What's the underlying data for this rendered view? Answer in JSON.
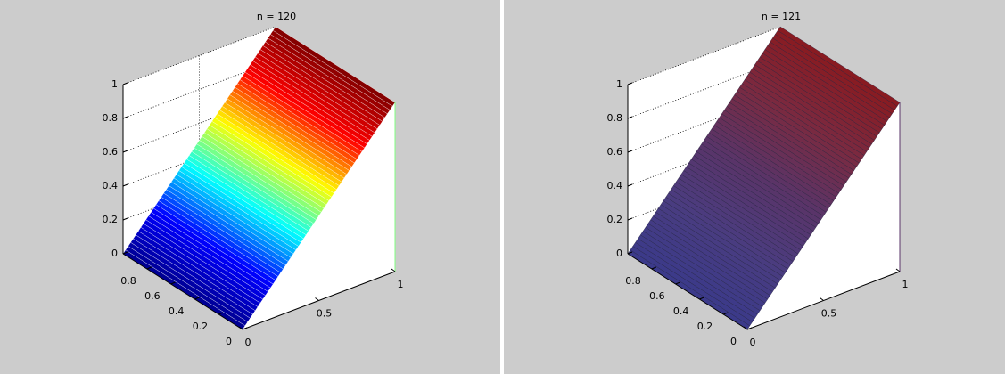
{
  "chart_data": [
    {
      "type": "surface",
      "title": "n = 120",
      "xlim": [
        0,
        1
      ],
      "ylim": [
        0,
        1
      ],
      "zlim": [
        0,
        1
      ],
      "xticks": [
        0,
        0.5,
        1
      ],
      "yticks": [
        0,
        0.2,
        0.4,
        0.6,
        0.8
      ],
      "zticks": [
        0,
        0.2,
        0.4,
        0.6,
        0.8,
        1
      ],
      "grid": true,
      "colors": [
        "#00008f",
        "#0000ff",
        "#00ffff",
        "#ffff00",
        "#ff0000",
        "#800000"
      ],
      "edge_color": "#ffffff"
    },
    {
      "type": "surface",
      "title": "n = 121",
      "xlim": [
        0,
        1
      ],
      "ylim": [
        0,
        1
      ],
      "zlim": [
        0,
        1
      ],
      "xticks": [
        0,
        0.5,
        1
      ],
      "yticks": [
        0,
        0.2,
        0.4,
        0.6,
        0.8
      ],
      "zticks": [
        0,
        0.2,
        0.4,
        0.6,
        0.8,
        1
      ],
      "grid": true,
      "colors": [
        "#3a3a8a",
        "#4a3c80",
        "#5a3468",
        "#7a2a40",
        "#8a1a20"
      ],
      "edge_color": "#20203a"
    }
  ]
}
